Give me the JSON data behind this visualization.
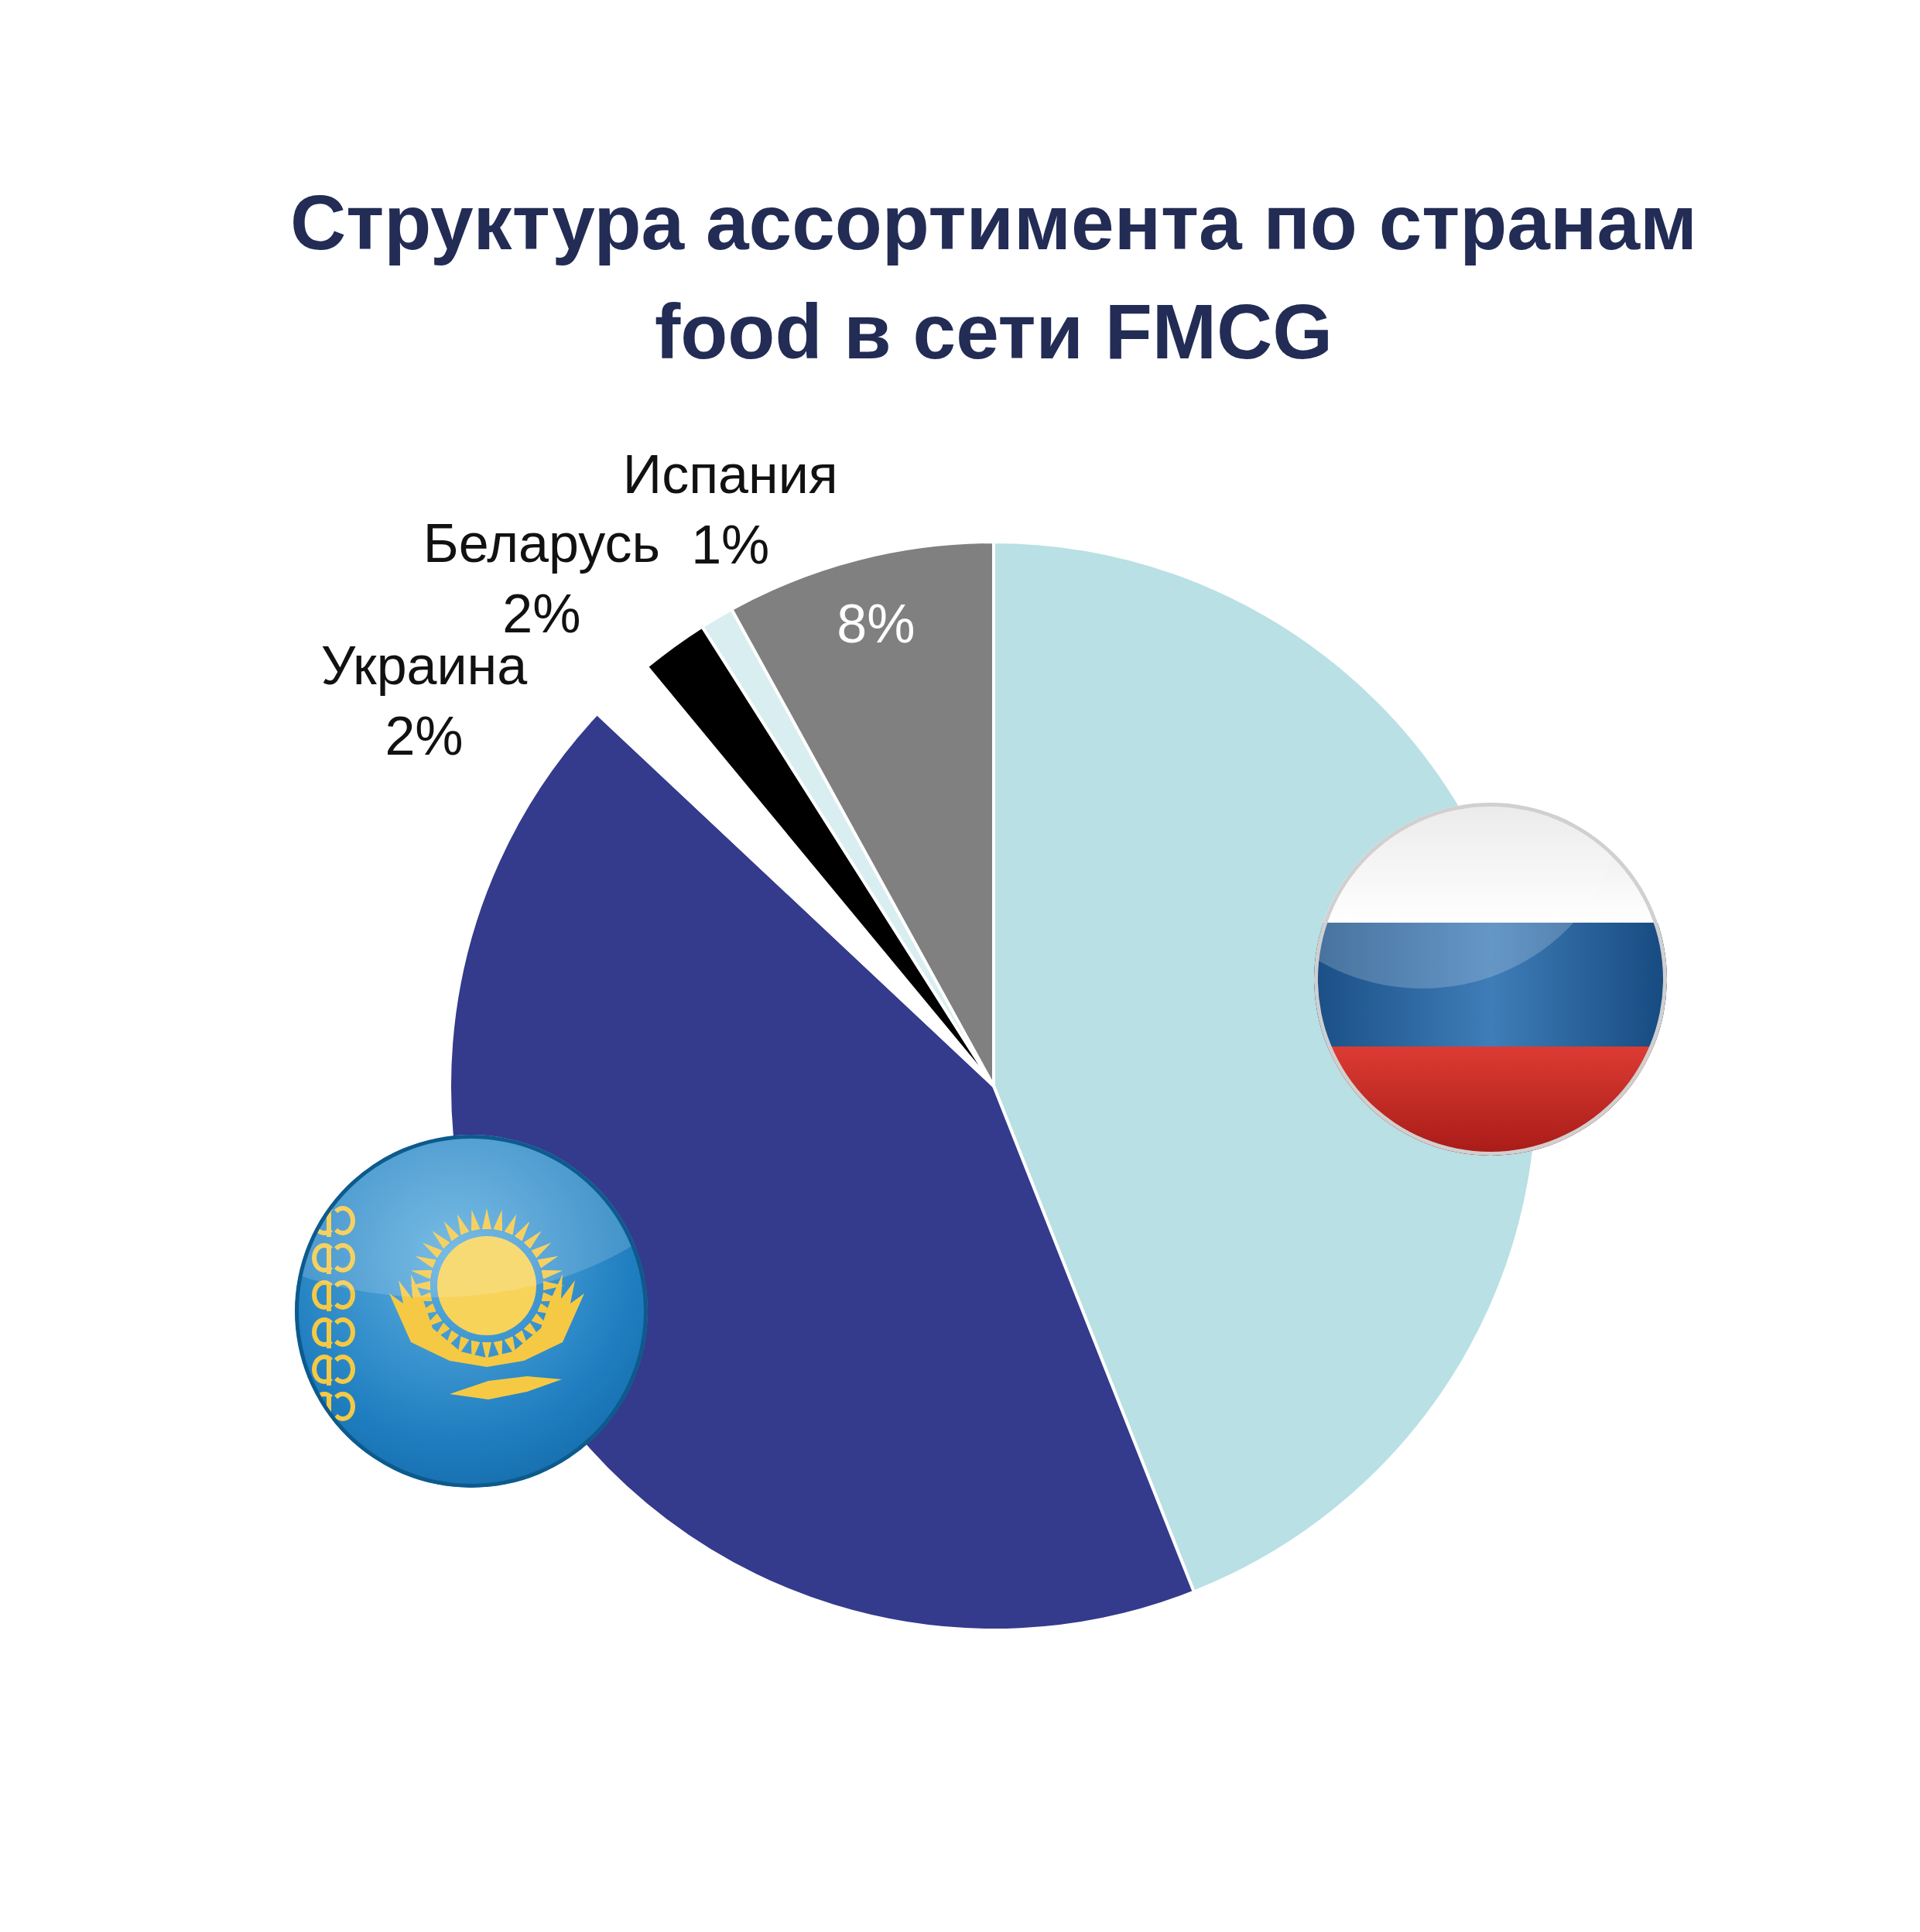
{
  "chart_data": {
    "type": "pie",
    "title": "Структура ассортимента по странам food в сети FMCG",
    "categories": [
      null,
      null,
      "Украина",
      "Беларусь",
      "Испания",
      null
    ],
    "values": [
      44,
      43,
      2,
      2,
      1,
      8
    ],
    "colors": [
      "#b9e0e4",
      "#343a8c",
      "#ffffff",
      "#000000",
      "#d9eef0",
      "#808080"
    ],
    "value_labels": [
      null,
      null,
      "2%",
      "2%",
      "1%",
      "8%"
    ]
  }
}
